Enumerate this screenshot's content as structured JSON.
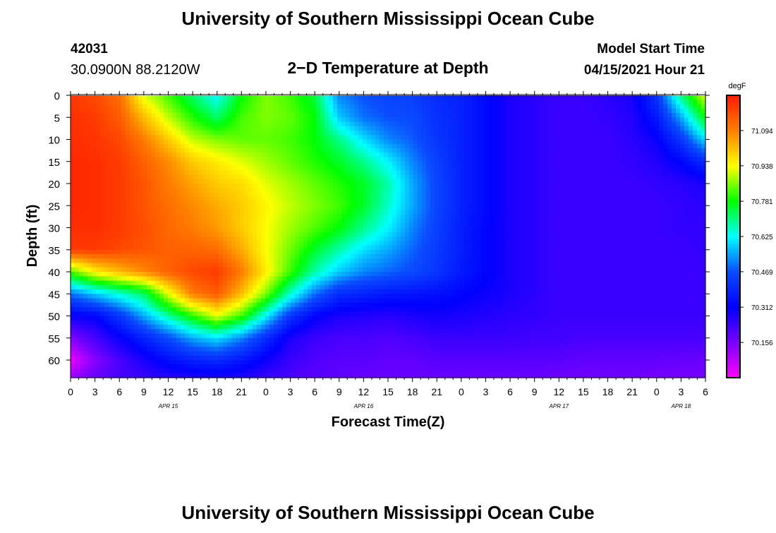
{
  "header": {
    "title": "University of Southern Mississippi Ocean Cube",
    "station_id": "42031",
    "location": "30.0900N  88.2120W",
    "model_label": "Model Start Time",
    "model_time": "04/15/2021 Hour 21",
    "footer_title": "University of Southern Mississippi Ocean Cube"
  },
  "chart_data": {
    "type": "heatmap",
    "title": "2−D Temperature at Depth",
    "xlabel": "Forecast Time(Z)",
    "ylabel": "Depth (ft)",
    "xlim": [
      0,
      78
    ],
    "ylim": [
      0,
      64
    ],
    "y_ticks": [
      0,
      5,
      10,
      15,
      20,
      25,
      30,
      35,
      40,
      45,
      50,
      55,
      60
    ],
    "x_ticks": [
      0,
      3,
      6,
      9,
      12,
      15,
      18,
      21,
      24,
      27,
      30,
      33,
      36,
      39,
      42,
      45,
      48,
      51,
      54,
      57,
      60,
      63,
      66,
      69,
      72,
      75,
      78
    ],
    "x_tick_labels": [
      "0",
      "3",
      "6",
      "9",
      "12",
      "15",
      "18",
      "21",
      "0",
      "3",
      "6",
      "9",
      "12",
      "15",
      "18",
      "21",
      "0",
      "3",
      "6",
      "9",
      "12",
      "15",
      "18",
      "21",
      "0",
      "3",
      "6"
    ],
    "date_labels": [
      {
        "label": "APR 15",
        "hour": 12
      },
      {
        "label": "APR 16",
        "hour": 36
      },
      {
        "label": "APR 17",
        "hour": 60
      },
      {
        "label": "APR 18",
        "hour": 75
      }
    ],
    "colorbar": {
      "unit": "degF",
      "min": 70.0,
      "max": 71.25,
      "labels": [
        "71.094",
        "70.938",
        "70.781",
        "70.625",
        "70.469",
        "70.312",
        "70.156"
      ],
      "label_values": [
        71.094,
        70.938,
        70.781,
        70.625,
        70.469,
        70.312,
        70.156
      ],
      "colors": [
        "#ff00ff",
        "#7a00ff",
        "#0000ff",
        "#0a4dff",
        "#00ffff",
        "#00ff00",
        "#ffff00",
        "#ff7f00",
        "#ff1a00"
      ]
    },
    "grid_hours": [
      0,
      3,
      6,
      9,
      12,
      15,
      18,
      21,
      24,
      27,
      30,
      33,
      36,
      39,
      42,
      45,
      48,
      51,
      54,
      57,
      60,
      63,
      66,
      69,
      72,
      75,
      78
    ],
    "grid_depths": [
      0,
      5,
      10,
      15,
      20,
      25,
      30,
      35,
      40,
      45,
      50,
      55,
      60,
      64
    ],
    "values": [
      [
        71.2,
        71.18,
        71.12,
        70.92,
        70.82,
        70.72,
        70.62,
        70.78,
        70.86,
        70.82,
        70.75,
        70.52,
        70.47,
        70.45,
        70.44,
        70.4,
        70.38,
        70.33,
        70.28,
        70.26,
        70.24,
        70.24,
        70.26,
        70.28,
        70.42,
        70.7,
        70.92
      ],
      [
        71.22,
        71.2,
        71.15,
        71.02,
        70.9,
        70.8,
        70.72,
        70.82,
        70.86,
        70.84,
        70.78,
        70.58,
        70.5,
        70.47,
        70.46,
        70.41,
        70.38,
        70.33,
        70.28,
        70.26,
        70.24,
        70.24,
        70.25,
        70.27,
        70.36,
        70.55,
        70.78
      ],
      [
        71.22,
        71.21,
        71.18,
        71.1,
        71.0,
        70.9,
        70.86,
        70.84,
        70.84,
        70.82,
        70.78,
        70.7,
        70.6,
        70.52,
        70.48,
        70.42,
        70.38,
        70.33,
        70.28,
        70.26,
        70.24,
        70.24,
        70.24,
        70.26,
        70.3,
        70.42,
        70.6
      ],
      [
        71.23,
        71.22,
        71.2,
        71.14,
        71.08,
        71.0,
        70.96,
        70.92,
        70.88,
        70.84,
        70.8,
        70.76,
        70.7,
        70.62,
        70.52,
        70.44,
        70.38,
        70.33,
        70.28,
        70.26,
        70.24,
        70.24,
        70.24,
        70.25,
        70.27,
        70.32,
        70.4
      ],
      [
        71.23,
        71.22,
        71.2,
        71.16,
        71.1,
        71.05,
        71.0,
        70.98,
        70.92,
        70.88,
        70.84,
        70.8,
        70.76,
        70.68,
        70.55,
        70.45,
        70.38,
        70.33,
        70.28,
        70.26,
        70.24,
        70.24,
        70.24,
        70.24,
        70.25,
        70.26,
        70.28
      ],
      [
        71.23,
        71.22,
        71.2,
        71.16,
        71.12,
        71.08,
        71.04,
        71.0,
        70.95,
        70.9,
        70.86,
        70.82,
        70.76,
        70.66,
        70.55,
        70.45,
        70.38,
        70.33,
        70.28,
        70.26,
        70.24,
        70.24,
        70.24,
        70.24,
        70.24,
        70.25,
        70.26
      ],
      [
        71.22,
        71.22,
        71.2,
        71.17,
        71.13,
        71.1,
        71.06,
        71.0,
        70.94,
        70.88,
        70.83,
        70.78,
        70.7,
        70.62,
        70.52,
        70.44,
        70.37,
        70.32,
        70.28,
        70.26,
        70.24,
        70.24,
        70.24,
        70.24,
        70.24,
        70.25,
        70.25
      ],
      [
        71.2,
        71.2,
        71.18,
        71.16,
        71.14,
        71.14,
        71.12,
        71.04,
        70.94,
        70.85,
        70.76,
        70.68,
        70.6,
        70.55,
        70.49,
        70.43,
        70.37,
        70.32,
        70.28,
        70.26,
        70.24,
        70.24,
        70.24,
        70.24,
        70.24,
        70.24,
        70.25
      ],
      [
        70.82,
        70.95,
        71.02,
        71.08,
        71.14,
        71.18,
        71.2,
        71.1,
        70.96,
        70.82,
        70.68,
        70.58,
        70.52,
        70.49,
        70.46,
        70.42,
        70.36,
        70.32,
        70.28,
        70.26,
        70.24,
        70.24,
        70.24,
        70.24,
        70.24,
        70.24,
        70.24
      ],
      [
        70.5,
        70.58,
        70.65,
        70.72,
        70.92,
        71.1,
        71.15,
        71.02,
        70.86,
        70.66,
        70.5,
        70.4,
        70.38,
        70.36,
        70.35,
        70.34,
        70.32,
        70.3,
        70.28,
        70.26,
        70.24,
        70.24,
        70.24,
        70.24,
        70.24,
        70.24,
        70.24
      ],
      [
        70.3,
        70.32,
        70.42,
        70.55,
        70.68,
        70.8,
        70.92,
        70.82,
        70.62,
        70.42,
        70.32,
        70.28,
        70.27,
        70.26,
        70.28,
        70.29,
        70.28,
        70.27,
        70.26,
        70.25,
        70.24,
        70.24,
        70.24,
        70.24,
        70.24,
        70.24,
        70.24
      ],
      [
        70.15,
        70.22,
        70.3,
        70.38,
        70.46,
        70.55,
        70.6,
        70.52,
        70.4,
        70.28,
        70.24,
        70.22,
        70.22,
        70.21,
        70.22,
        70.24,
        70.24,
        70.24,
        70.24,
        70.23,
        70.23,
        70.22,
        70.22,
        70.22,
        70.22,
        70.22,
        70.22
      ],
      [
        70.02,
        70.14,
        70.22,
        70.28,
        70.34,
        70.38,
        70.4,
        70.36,
        70.3,
        70.24,
        70.21,
        70.2,
        70.2,
        70.19,
        70.19,
        70.2,
        70.2,
        70.2,
        70.2,
        70.2,
        70.2,
        70.19,
        70.19,
        70.19,
        70.19,
        70.18,
        70.18
      ],
      [
        70.12,
        70.18,
        70.22,
        70.24,
        70.26,
        70.27,
        70.28,
        70.27,
        70.24,
        70.22,
        70.2,
        70.19,
        70.18,
        70.18,
        70.18,
        70.18,
        70.18,
        70.18,
        70.18,
        70.18,
        70.17,
        70.17,
        70.17,
        70.17,
        70.16,
        70.16,
        70.16
      ]
    ]
  }
}
